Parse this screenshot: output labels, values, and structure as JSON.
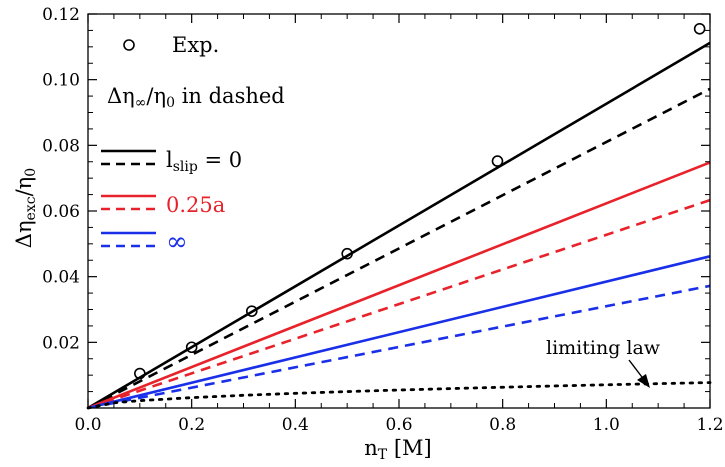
{
  "chart_data": {
    "type": "line",
    "xlabel": "n_T [M]",
    "ylabel": "Δη_exc/η_0",
    "xlim": [
      0.0,
      1.2
    ],
    "ylim": [
      0.0,
      0.12
    ],
    "xticks": [
      "0.0",
      "0.2",
      "0.4",
      "0.6",
      "0.8",
      "1.0",
      "1.2"
    ],
    "yticks": [
      "0.02",
      "0.04",
      "0.06",
      "0.08",
      "0.10",
      "0.12"
    ],
    "grid": false,
    "legend": {
      "exp_label": "Exp.",
      "dashed_note": "Δη∞/η0 in dashed",
      "entries": [
        {
          "label": "l_slip = 0",
          "color": "#000000"
        },
        {
          "label": "0.25a",
          "color": "#e8222a"
        },
        {
          "label": "∞",
          "color": "#1a2fe8"
        }
      ]
    },
    "annotation": {
      "text": "limiting law"
    },
    "experiment": {
      "marker": "open-circle",
      "x": [
        0.1,
        0.2,
        0.316,
        0.5,
        0.79,
        1.18
      ],
      "y": [
        0.0105,
        0.0185,
        0.0295,
        0.047,
        0.0752,
        0.1155
      ]
    },
    "series": [
      {
        "name": "l_slip = 0",
        "style": "solid",
        "color": "#000000",
        "x": [
          0.0,
          1.2
        ],
        "y": [
          0.0,
          0.1112
        ]
      },
      {
        "name": "l_slip = 0",
        "style": "dashed",
        "color": "#000000",
        "x": [
          0.0,
          1.2
        ],
        "y": [
          0.0,
          0.0972
        ]
      },
      {
        "name": "0.25a",
        "style": "solid",
        "color": "#e8222a",
        "x": [
          0.0,
          1.2
        ],
        "y": [
          0.0,
          0.0748
        ]
      },
      {
        "name": "0.25a",
        "style": "dashed",
        "color": "#e8222a",
        "x": [
          0.0,
          1.2
        ],
        "y": [
          0.0,
          0.0633
        ]
      },
      {
        "name": "∞",
        "style": "solid",
        "color": "#1a2fe8",
        "x": [
          0.0,
          1.2
        ],
        "y": [
          0.0,
          0.0462
        ]
      },
      {
        "name": "∞",
        "style": "dashed",
        "color": "#1a2fe8",
        "x": [
          0.0,
          1.2
        ],
        "y": [
          0.0,
          0.0372
        ]
      },
      {
        "name": "limiting law",
        "style": "dotted",
        "color": "#000000",
        "x": [
          0.0,
          0.05,
          0.1,
          0.2,
          0.3,
          0.4,
          0.5,
          0.6,
          0.7,
          0.8,
          0.9,
          1.0,
          1.1,
          1.2
        ],
        "y": [
          0.0,
          0.00158,
          0.00224,
          0.00316,
          0.00387,
          0.00447,
          0.005,
          0.00548,
          0.00592,
          0.00632,
          0.00671,
          0.00707,
          0.00742,
          0.00775
        ]
      }
    ]
  }
}
